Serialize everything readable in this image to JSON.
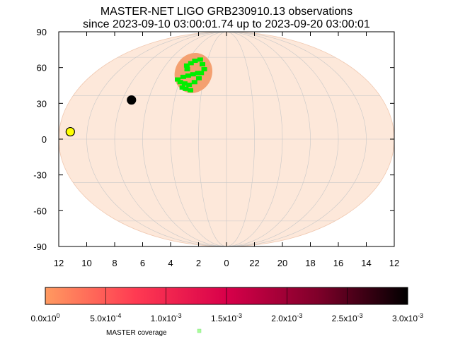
{
  "chart_data": {
    "type": "map",
    "title": "MASTER-NET LIGO GRB230910.13 observations",
    "subtitle": "since 2023-09-10 03:00:01.74 up to 2023-09-20 03:00:01",
    "projection": "mollweide",
    "yticks": [
      "90",
      "60",
      "30",
      "0",
      "-30",
      "-60",
      "-90"
    ],
    "xticks": [
      "12",
      "10",
      "8",
      "6",
      "4",
      "2",
      "0",
      "22",
      "20",
      "18",
      "16",
      "14",
      "12"
    ],
    "ylim": [
      -90,
      90
    ],
    "x_units": "hours of right ascension (reversed, 12 to 12)",
    "grid": true,
    "probability_region": {
      "ra_h": 3.0,
      "dec_deg": 47,
      "color": "#f4a070"
    },
    "coverage_points": [
      {
        "ra_h": 3.9,
        "dec_deg": 53
      },
      {
        "ra_h": 3.6,
        "dec_deg": 55
      },
      {
        "ra_h": 3.3,
        "dec_deg": 57
      },
      {
        "ra_h": 2.8,
        "dec_deg": 58
      },
      {
        "ra_h": 2.4,
        "dec_deg": 54
      },
      {
        "ra_h": 2.1,
        "dec_deg": 50
      },
      {
        "ra_h": 2.6,
        "dec_deg": 47
      },
      {
        "ra_h": 3.0,
        "dec_deg": 46
      },
      {
        "ra_h": 3.4,
        "dec_deg": 45
      },
      {
        "ra_h": 3.8,
        "dec_deg": 44
      },
      {
        "ra_h": 4.2,
        "dec_deg": 42
      },
      {
        "ra_h": 3.9,
        "dec_deg": 40
      },
      {
        "ra_h": 3.5,
        "dec_deg": 39
      },
      {
        "ra_h": 3.1,
        "dec_deg": 38
      },
      {
        "ra_h": 2.7,
        "dec_deg": 40
      },
      {
        "ra_h": 2.4,
        "dec_deg": 43
      },
      {
        "ra_h": 3.3,
        "dec_deg": 35
      },
      {
        "ra_h": 2.9,
        "dec_deg": 34
      },
      {
        "ra_h": 3.6,
        "dec_deg": 36
      },
      {
        "ra_h": 2.3,
        "dec_deg": 47
      },
      {
        "ra_h": 3.7,
        "dec_deg": 50
      }
    ],
    "markers": [
      {
        "name": "moon",
        "ra_h": 7.3,
        "dec_deg": 27,
        "color": "#000000"
      },
      {
        "name": "sun",
        "ra_h": 11.2,
        "dec_deg": 5,
        "color": "#ffff00"
      }
    ],
    "colorbar": {
      "labels": [
        "0.0x10",
        "5.0x10",
        "1.0x10",
        "1.5x10",
        "2.0x10",
        "2.5x10",
        "3.0x10"
      ],
      "exponents": [
        "0",
        "-4",
        "-3",
        "-3",
        "-3",
        "-3",
        "-3"
      ],
      "range": [
        0,
        0.003
      ],
      "colors": [
        "#ff9a60",
        "#ff3a52",
        "#d8004a",
        "#80002a",
        "#000000"
      ]
    },
    "legend": {
      "label": "MASTER coverage",
      "color": "#a8ff98"
    },
    "colors": {
      "sky_fill": "#fde8da",
      "grid": "#c8c8c8",
      "coverage": "#00ee00"
    }
  }
}
